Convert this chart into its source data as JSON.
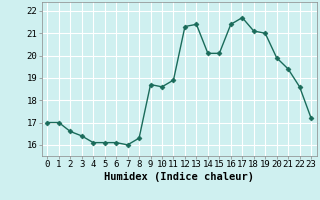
{
  "x": [
    0,
    1,
    2,
    3,
    4,
    5,
    6,
    7,
    8,
    9,
    10,
    11,
    12,
    13,
    14,
    15,
    16,
    17,
    18,
    19,
    20,
    21,
    22,
    23
  ],
  "y": [
    17.0,
    17.0,
    16.6,
    16.4,
    16.1,
    16.1,
    16.1,
    16.0,
    16.3,
    18.7,
    18.6,
    18.9,
    21.3,
    21.4,
    20.1,
    20.1,
    21.4,
    21.7,
    21.1,
    21.0,
    19.9,
    19.4,
    18.6,
    17.2
  ],
  "line_color": "#1a6b5a",
  "marker": "D",
  "marker_size": 2.5,
  "bg_color": "#cff0f0",
  "grid_color": "#ffffff",
  "xlabel": "Humidex (Indice chaleur)",
  "ylim": [
    15.5,
    22.4
  ],
  "xlim": [
    -0.5,
    23.5
  ],
  "yticks": [
    16,
    17,
    18,
    19,
    20,
    21,
    22
  ],
  "xticks": [
    0,
    1,
    2,
    3,
    4,
    5,
    6,
    7,
    8,
    9,
    10,
    11,
    12,
    13,
    14,
    15,
    16,
    17,
    18,
    19,
    20,
    21,
    22,
    23
  ],
  "xlabel_fontsize": 7.5,
  "tick_fontsize": 6.5,
  "line_width": 1.0
}
